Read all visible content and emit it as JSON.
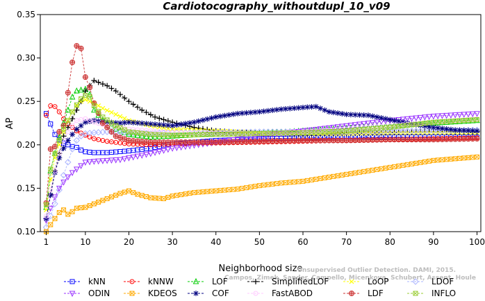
{
  "chart_data": {
    "type": "line",
    "title": "Cardiotocography_withoutdupl_10_v09",
    "xlabel": "Neighborhood size",
    "ylabel": "AP",
    "xlim": [
      0,
      100
    ],
    "ylim": [
      0.1,
      0.35
    ],
    "xticks": [
      "1",
      "10",
      "20",
      "30",
      "40",
      "50",
      "60",
      "70",
      "80",
      "90",
      "100"
    ],
    "yticks": [
      "0.10",
      "0.15",
      "0.20",
      "0.25",
      "0.30",
      "0.35"
    ],
    "grid": false,
    "legend_position": "bottom",
    "watermark": [
      "Unsupervised Outlier Detection. DAMI, 2015.",
      "Campos, Zimek, Sander, Campello, Micenkova, Schubert, Assent, Houle"
    ],
    "series": [
      {
        "name": "kNN",
        "color": "#0000ff",
        "marker": "square",
        "points": [
          [
            1,
            0.236
          ],
          [
            2,
            0.224
          ],
          [
            3,
            0.212
          ],
          [
            4,
            0.206
          ],
          [
            5,
            0.202
          ],
          [
            6,
            0.2
          ],
          [
            7,
            0.198
          ],
          [
            8,
            0.197
          ],
          [
            9,
            0.194
          ],
          [
            10,
            0.192
          ],
          [
            12,
            0.191
          ],
          [
            15,
            0.191
          ],
          [
            20,
            0.193
          ],
          [
            25,
            0.196
          ],
          [
            30,
            0.201
          ],
          [
            40,
            0.205
          ],
          [
            50,
            0.207
          ],
          [
            60,
            0.208
          ],
          [
            70,
            0.209
          ],
          [
            80,
            0.209
          ],
          [
            90,
            0.209
          ],
          [
            100,
            0.209
          ]
        ]
      },
      {
        "name": "kNNW",
        "color": "#ff0000",
        "marker": "circle",
        "points": [
          [
            1,
            0.234
          ],
          [
            2,
            0.245
          ],
          [
            3,
            0.244
          ],
          [
            4,
            0.238
          ],
          [
            5,
            0.23
          ],
          [
            6,
            0.224
          ],
          [
            7,
            0.22
          ],
          [
            8,
            0.216
          ],
          [
            10,
            0.211
          ],
          [
            12,
            0.207
          ],
          [
            15,
            0.204
          ],
          [
            20,
            0.201
          ],
          [
            25,
            0.2
          ],
          [
            30,
            0.201
          ],
          [
            40,
            0.202
          ],
          [
            50,
            0.203
          ],
          [
            60,
            0.204
          ],
          [
            70,
            0.205
          ],
          [
            80,
            0.206
          ],
          [
            90,
            0.207
          ],
          [
            100,
            0.208
          ]
        ]
      },
      {
        "name": "LOF",
        "color": "#00cc00",
        "marker": "triangle",
        "points": [
          [
            1,
            0.128
          ],
          [
            2,
            0.17
          ],
          [
            3,
            0.19
          ],
          [
            4,
            0.208
          ],
          [
            5,
            0.225
          ],
          [
            6,
            0.24
          ],
          [
            7,
            0.255
          ],
          [
            8,
            0.262
          ],
          [
            9,
            0.263
          ],
          [
            10,
            0.264
          ],
          [
            11,
            0.258
          ],
          [
            12,
            0.24
          ],
          [
            14,
            0.228
          ],
          [
            17,
            0.218
          ],
          [
            20,
            0.212
          ],
          [
            25,
            0.209
          ],
          [
            30,
            0.21
          ],
          [
            40,
            0.213
          ],
          [
            50,
            0.213
          ],
          [
            60,
            0.216
          ],
          [
            70,
            0.219
          ],
          [
            80,
            0.222
          ],
          [
            90,
            0.225
          ],
          [
            100,
            0.228
          ]
        ]
      },
      {
        "name": "SimplifiedLOF",
        "color": "#000000",
        "marker": "plus",
        "points": [
          [
            1,
            0.115
          ],
          [
            2,
            0.143
          ],
          [
            3,
            0.17
          ],
          [
            4,
            0.19
          ],
          [
            5,
            0.21
          ],
          [
            6,
            0.22
          ],
          [
            7,
            0.23
          ],
          [
            8,
            0.24
          ],
          [
            9,
            0.25
          ],
          [
            10,
            0.262
          ],
          [
            11,
            0.268
          ],
          [
            12,
            0.274
          ],
          [
            13,
            0.272
          ],
          [
            15,
            0.268
          ],
          [
            17,
            0.262
          ],
          [
            20,
            0.25
          ],
          [
            23,
            0.24
          ],
          [
            26,
            0.232
          ],
          [
            30,
            0.226
          ],
          [
            35,
            0.22
          ],
          [
            40,
            0.216
          ],
          [
            50,
            0.213
          ],
          [
            60,
            0.212
          ],
          [
            70,
            0.213
          ],
          [
            80,
            0.214
          ],
          [
            90,
            0.215
          ],
          [
            100,
            0.215
          ]
        ]
      },
      {
        "name": "LoOP",
        "color": "#ffff00",
        "marker": "x",
        "points": [
          [
            1,
            0.125
          ],
          [
            2,
            0.16
          ],
          [
            3,
            0.185
          ],
          [
            4,
            0.2
          ],
          [
            5,
            0.215
          ],
          [
            6,
            0.228
          ],
          [
            7,
            0.238
          ],
          [
            8,
            0.245
          ],
          [
            9,
            0.25
          ],
          [
            10,
            0.252
          ],
          [
            12,
            0.248
          ],
          [
            14,
            0.242
          ],
          [
            17,
            0.235
          ],
          [
            20,
            0.228
          ],
          [
            25,
            0.222
          ],
          [
            30,
            0.218
          ],
          [
            40,
            0.216
          ],
          [
            50,
            0.214
          ],
          [
            60,
            0.213
          ],
          [
            70,
            0.213
          ],
          [
            80,
            0.214
          ],
          [
            90,
            0.214
          ],
          [
            100,
            0.214
          ]
        ]
      },
      {
        "name": "LDOF",
        "color": "#aab4ff",
        "marker": "diamond",
        "points": [
          [
            1,
            0.105
          ],
          [
            2,
            0.118
          ],
          [
            3,
            0.132
          ],
          [
            4,
            0.148
          ],
          [
            5,
            0.165
          ],
          [
            6,
            0.18
          ],
          [
            7,
            0.195
          ],
          [
            8,
            0.205
          ],
          [
            9,
            0.21
          ],
          [
            10,
            0.213
          ],
          [
            12,
            0.214
          ],
          [
            15,
            0.215
          ],
          [
            20,
            0.214
          ],
          [
            25,
            0.213
          ],
          [
            30,
            0.214
          ],
          [
            40,
            0.214
          ],
          [
            50,
            0.215
          ],
          [
            60,
            0.215
          ],
          [
            70,
            0.215
          ],
          [
            80,
            0.216
          ],
          [
            90,
            0.216
          ],
          [
            100,
            0.217
          ]
        ]
      },
      {
        "name": "ODIN",
        "color": "#9933ff",
        "marker": "triangle-down",
        "points": [
          [
            1,
            0.113
          ],
          [
            2,
            0.127
          ],
          [
            3,
            0.14
          ],
          [
            4,
            0.15
          ],
          [
            5,
            0.157
          ],
          [
            6,
            0.163
          ],
          [
            7,
            0.168
          ],
          [
            8,
            0.172
          ],
          [
            10,
            0.18
          ],
          [
            12,
            0.181
          ],
          [
            15,
            0.182
          ],
          [
            18,
            0.183
          ],
          [
            20,
            0.185
          ],
          [
            25,
            0.19
          ],
          [
            30,
            0.196
          ],
          [
            40,
            0.203
          ],
          [
            50,
            0.21
          ],
          [
            60,
            0.216
          ],
          [
            70,
            0.222
          ],
          [
            80,
            0.228
          ],
          [
            90,
            0.233
          ],
          [
            100,
            0.236
          ]
        ]
      },
      {
        "name": "KDEOS",
        "color": "#ffaa00",
        "marker": "square-x",
        "points": [
          [
            1,
            0.1
          ],
          [
            2,
            0.108
          ],
          [
            3,
            0.115
          ],
          [
            4,
            0.122
          ],
          [
            5,
            0.125
          ],
          [
            6,
            0.12
          ],
          [
            7,
            0.123
          ],
          [
            8,
            0.127
          ],
          [
            10,
            0.128
          ],
          [
            12,
            0.132
          ],
          [
            15,
            0.138
          ],
          [
            18,
            0.144
          ],
          [
            20,
            0.147
          ],
          [
            22,
            0.143
          ],
          [
            25,
            0.139
          ],
          [
            28,
            0.138
          ],
          [
            30,
            0.141
          ],
          [
            35,
            0.145
          ],
          [
            40,
            0.147
          ],
          [
            45,
            0.149
          ],
          [
            50,
            0.153
          ],
          [
            55,
            0.156
          ],
          [
            60,
            0.158
          ],
          [
            65,
            0.162
          ],
          [
            70,
            0.166
          ],
          [
            75,
            0.17
          ],
          [
            80,
            0.174
          ],
          [
            85,
            0.178
          ],
          [
            90,
            0.182
          ],
          [
            95,
            0.184
          ],
          [
            100,
            0.186
          ]
        ]
      },
      {
        "name": "COF",
        "color": "#000080",
        "marker": "star",
        "points": [
          [
            1,
            0.115
          ],
          [
            2,
            0.142
          ],
          [
            3,
            0.168
          ],
          [
            4,
            0.185
          ],
          [
            5,
            0.196
          ],
          [
            6,
            0.205
          ],
          [
            7,
            0.212
          ],
          [
            8,
            0.218
          ],
          [
            9,
            0.222
          ],
          [
            10,
            0.226
          ],
          [
            12,
            0.228
          ],
          [
            15,
            0.226
          ],
          [
            18,
            0.225
          ],
          [
            20,
            0.226
          ],
          [
            25,
            0.224
          ],
          [
            30,
            0.222
          ],
          [
            35,
            0.226
          ],
          [
            40,
            0.232
          ],
          [
            45,
            0.236
          ],
          [
            50,
            0.238
          ],
          [
            55,
            0.241
          ],
          [
            60,
            0.243
          ],
          [
            63,
            0.244
          ],
          [
            66,
            0.238
          ],
          [
            70,
            0.235
          ],
          [
            75,
            0.234
          ],
          [
            80,
            0.229
          ],
          [
            85,
            0.224
          ],
          [
            90,
            0.22
          ],
          [
            95,
            0.217
          ],
          [
            100,
            0.216
          ]
        ]
      },
      {
        "name": "FastABOD",
        "color": "#ffc8ff",
        "marker": "circle",
        "points": [
          [
            1,
            0.118
          ],
          [
            2,
            0.148
          ],
          [
            3,
            0.17
          ],
          [
            4,
            0.19
          ],
          [
            5,
            0.205
          ],
          [
            6,
            0.215
          ],
          [
            7,
            0.222
          ],
          [
            8,
            0.228
          ],
          [
            10,
            0.23
          ],
          [
            12,
            0.226
          ],
          [
            15,
            0.222
          ],
          [
            20,
            0.218
          ],
          [
            25,
            0.216
          ],
          [
            30,
            0.214
          ],
          [
            40,
            0.213
          ],
          [
            50,
            0.213
          ],
          [
            60,
            0.215
          ],
          [
            70,
            0.218
          ],
          [
            80,
            0.222
          ],
          [
            90,
            0.226
          ],
          [
            100,
            0.23
          ]
        ]
      },
      {
        "name": "LDF",
        "color": "#cc3333",
        "marker": "circle-plus",
        "points": [
          [
            1,
            0.133
          ],
          [
            2,
            0.195
          ],
          [
            3,
            0.198
          ],
          [
            4,
            0.215
          ],
          [
            5,
            0.222
          ],
          [
            6,
            0.26
          ],
          [
            7,
            0.295
          ],
          [
            8,
            0.314
          ],
          [
            9,
            0.311
          ],
          [
            10,
            0.278
          ],
          [
            11,
            0.266
          ],
          [
            12,
            0.248
          ],
          [
            14,
            0.225
          ],
          [
            17,
            0.21
          ],
          [
            20,
            0.205
          ],
          [
            25,
            0.203
          ],
          [
            30,
            0.203
          ],
          [
            40,
            0.203
          ],
          [
            50,
            0.204
          ],
          [
            60,
            0.205
          ],
          [
            70,
            0.205
          ],
          [
            80,
            0.206
          ],
          [
            90,
            0.206
          ],
          [
            100,
            0.207
          ]
        ]
      },
      {
        "name": "INFLO",
        "color": "#99cc33",
        "marker": "square-x",
        "points": [
          [
            1,
            0.131
          ],
          [
            2,
            0.172
          ],
          [
            3,
            0.19
          ],
          [
            4,
            0.205
          ],
          [
            5,
            0.218
          ],
          [
            6,
            0.228
          ],
          [
            7,
            0.238
          ],
          [
            8,
            0.246
          ],
          [
            9,
            0.253
          ],
          [
            10,
            0.257
          ],
          [
            11,
            0.255
          ],
          [
            12,
            0.245
          ],
          [
            14,
            0.232
          ],
          [
            17,
            0.222
          ],
          [
            20,
            0.215
          ],
          [
            25,
            0.212
          ],
          [
            30,
            0.211
          ],
          [
            40,
            0.212
          ],
          [
            50,
            0.213
          ],
          [
            60,
            0.214
          ],
          [
            70,
            0.216
          ],
          [
            80,
            0.22
          ],
          [
            85,
            0.223
          ],
          [
            90,
            0.226
          ],
          [
            100,
            0.229
          ]
        ]
      }
    ],
    "legend_rows": [
      [
        "kNN",
        "kNNW",
        "LOF",
        "SimplifiedLOF",
        "LoOP",
        "LDOF"
      ],
      [
        "ODIN",
        "KDEOS",
        "COF",
        "FastABOD",
        "LDF",
        "INFLO"
      ]
    ]
  }
}
